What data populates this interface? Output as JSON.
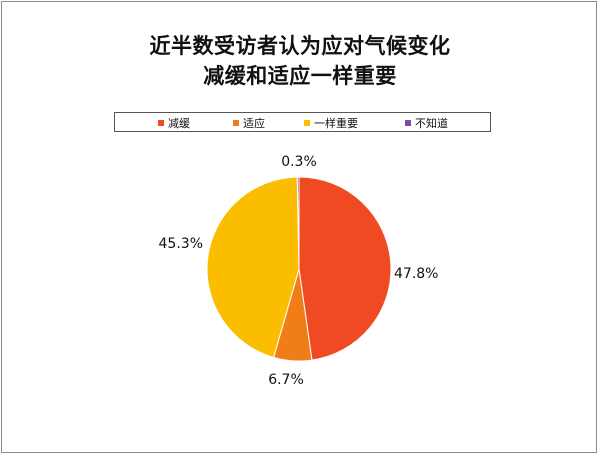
{
  "chart_data": {
    "type": "pie",
    "title_lines": [
      "近半数受访者认为应对气候变化",
      "减缓和适应一样重要"
    ],
    "legend_position": "top",
    "categories": [
      "减缓",
      "适应",
      "一样重要",
      "不知道"
    ],
    "values": [
      47.8,
      6.7,
      45.3,
      0.3
    ],
    "value_labels": [
      "47.8%",
      "6.7%",
      "45.3%",
      "0.3%"
    ],
    "colors": [
      "#f04a23",
      "#f07d17",
      "#fbbd00",
      "#7d4ba8"
    ]
  }
}
